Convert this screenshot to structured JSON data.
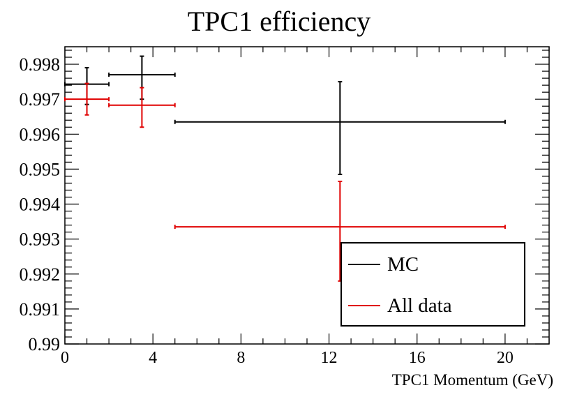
{
  "chart_data": {
    "type": "scatter",
    "title": "TPC1 efficiency",
    "xlabel": "TPC1 Momentum (GeV)",
    "ylabel": "",
    "xlim": [
      0,
      22
    ],
    "ylim": [
      0.99,
      0.9985
    ],
    "x_ticks": [
      0,
      4,
      8,
      12,
      16,
      20
    ],
    "y_ticks": [
      0.99,
      0.991,
      0.992,
      0.993,
      0.994,
      0.995,
      0.996,
      0.997,
      0.998
    ],
    "y_tick_labels": [
      "0.99",
      "0.991",
      "0.992",
      "0.993",
      "0.994",
      "0.995",
      "0.996",
      "0.997",
      "0.998"
    ],
    "grid": false,
    "legend_position": "bottom-right",
    "series": [
      {
        "name": "MC",
        "color": "#000000",
        "points": [
          {
            "x": 1.0,
            "xlo": 0,
            "xhi": 2,
            "y": 0.99743,
            "ylo": 0.99685,
            "yhi": 0.9979
          },
          {
            "x": 3.5,
            "xlo": 2,
            "xhi": 5,
            "y": 0.9977,
            "ylo": 0.997,
            "yhi": 0.99823
          },
          {
            "x": 12.5,
            "xlo": 5,
            "xhi": 20,
            "y": 0.99635,
            "ylo": 0.99485,
            "yhi": 0.9975
          }
        ]
      },
      {
        "name": "All data",
        "color": "#e00000",
        "points": [
          {
            "x": 1.0,
            "xlo": 0,
            "xhi": 2,
            "y": 0.997,
            "ylo": 0.99655,
            "yhi": 0.99745
          },
          {
            "x": 3.5,
            "xlo": 2,
            "xhi": 5,
            "y": 0.99683,
            "ylo": 0.9962,
            "yhi": 0.99733
          },
          {
            "x": 12.5,
            "xlo": 5,
            "xhi": 20,
            "y": 0.99335,
            "ylo": 0.9918,
            "yhi": 0.99465
          }
        ]
      }
    ]
  }
}
